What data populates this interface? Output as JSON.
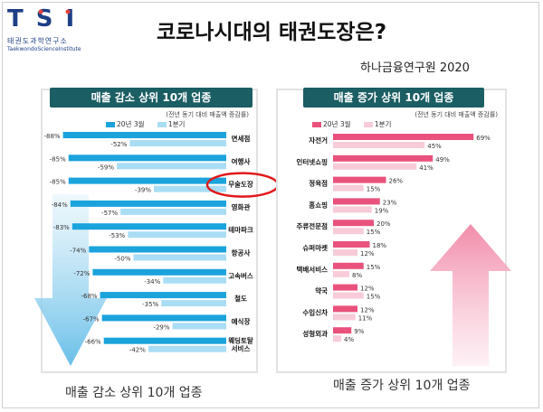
{
  "logo": {
    "letters": "TSI",
    "korean": "태권도과학연구소",
    "english": "TaekwondoScienceInstitute"
  },
  "title": "코로나시대의 태권도장은?",
  "source": "하나금융연구원 2020",
  "colors": {
    "primary_series": "#1ba3dc",
    "secondary_series": "#a9ddf3",
    "increase_primary": "#e9527c",
    "increase_secondary": "#f7cbd8",
    "panel_header": "#1b5e63",
    "highlight": "#e0191b"
  },
  "left_panel": {
    "title": "매출 감소 상위 10개 업종",
    "note": "(전년 동기 대비 매출액 증감률)",
    "caption": "매출 감소 상위 10개 업종"
  },
  "right_panel": {
    "title": "매출 증가 상위 10개 업종",
    "note": "(전년 동기 대비 매출액 증감률)",
    "caption": "매출 증가 상위 10개 업종"
  },
  "chart_data": [
    {
      "type": "bar",
      "title": "매출 감소 상위 10개 업종",
      "categories": [
        "면세점",
        "여행사",
        "무술도장",
        "영화관",
        "테마파크",
        "항공사",
        "고속버스",
        "철도",
        "예식장",
        "웨딩토탈 서비스"
      ],
      "series": [
        {
          "name": "20년 3월",
          "values": [
            -88,
            -85,
            -85,
            -84,
            -83,
            -74,
            -72,
            -68,
            -67,
            -66
          ],
          "labels": [
            "-88%",
            "-85%",
            "-85%",
            "-84%",
            "-83%",
            "-74%",
            "-72%",
            "-68%",
            "-67%",
            "-66%"
          ]
        },
        {
          "name": "1분기",
          "values": [
            -52,
            -59,
            -39,
            -57,
            -53,
            -50,
            -34,
            -35,
            -29,
            -42
          ],
          "labels": [
            "-52%",
            "-59%",
            "-39%",
            "-57%",
            "-53%",
            "-50%",
            "-34%",
            "-35%",
            "-29%",
            "-42%"
          ]
        }
      ],
      "highlight": "무술도장",
      "xlim": [
        -100,
        0
      ],
      "legend": "top"
    },
    {
      "type": "bar",
      "title": "매출 증가 상위 10개 업종",
      "categories": [
        "자전거",
        "인터넷쇼핑",
        "정육점",
        "홈쇼핑",
        "주류전문점",
        "슈퍼마켓",
        "택배서비스",
        "약국",
        "수입신차",
        "성형외과"
      ],
      "series": [
        {
          "name": "20년 3월",
          "values": [
            69,
            49,
            26,
            23,
            20,
            18,
            15,
            12,
            12,
            9
          ],
          "labels": [
            "69%",
            "49%",
            "26%",
            "23%",
            "20%",
            "18%",
            "15%",
            "12%",
            "12%",
            "9%"
          ]
        },
        {
          "name": "1분기",
          "values": [
            45,
            41,
            15,
            19,
            15,
            12,
            8,
            15,
            11,
            4
          ],
          "labels": [
            "45%",
            "41%",
            "15%",
            "19%",
            "15%",
            "12%",
            "8%",
            "15%",
            "11%",
            "4%"
          ]
        }
      ],
      "xlim": [
        0,
        80
      ],
      "legend": "top"
    }
  ]
}
